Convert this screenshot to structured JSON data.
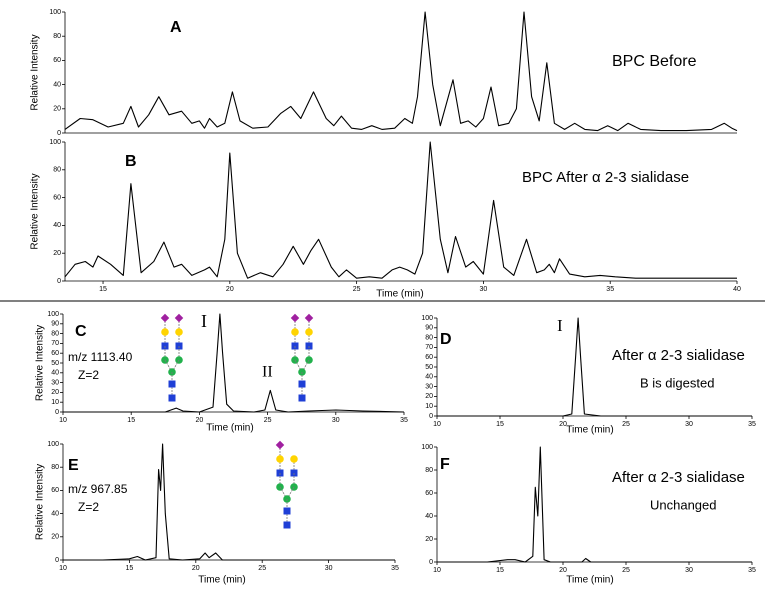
{
  "chart_data": [
    {
      "type": "line",
      "panel_label": "A",
      "ylabel": "Relative Intensity",
      "annotations": [
        "BPC Before"
      ],
      "xlim": [
        13.5,
        40
      ],
      "ylim": [
        0,
        100
      ],
      "yticks": [
        0,
        20,
        40,
        60,
        80,
        100
      ],
      "color": "#000000",
      "x": [
        13.5,
        14.1,
        14.6,
        15.2,
        15.8,
        16.1,
        16.4,
        16.8,
        17.2,
        17.6,
        18.1,
        18.5,
        18.8,
        19.0,
        19.2,
        19.5,
        19.8,
        20.1,
        20.4,
        20.9,
        21.5,
        22.0,
        22.4,
        22.8,
        23.3,
        23.8,
        24.1,
        24.4,
        24.8,
        25.2,
        25.6,
        26.0,
        26.5,
        26.9,
        27.2,
        27.4,
        27.7,
        28.0,
        28.3,
        28.8,
        29.1,
        29.4,
        29.7,
        30.0,
        30.3,
        30.6,
        31.0,
        31.3,
        31.6,
        31.9,
        32.2,
        32.5,
        32.8,
        33.2,
        33.6,
        34.0,
        34.5,
        34.9,
        35.3,
        35.7,
        36.2,
        37.0,
        38.0,
        39.0,
        39.5,
        39.8,
        40.0
      ],
      "values": [
        3,
        12,
        11,
        5,
        8,
        22,
        5,
        15,
        30,
        15,
        18,
        8,
        10,
        4,
        12,
        5,
        8,
        34,
        10,
        4,
        5,
        16,
        22,
        12,
        34,
        12,
        6,
        14,
        4,
        3,
        6,
        3,
        4,
        12,
        8,
        30,
        100,
        40,
        6,
        44,
        8,
        10,
        5,
        12,
        38,
        6,
        8,
        20,
        100,
        30,
        10,
        58,
        8,
        3,
        8,
        3,
        2,
        6,
        2,
        8,
        3,
        2,
        2,
        3,
        8,
        4,
        2
      ]
    },
    {
      "type": "line",
      "panel_label": "B",
      "ylabel": "Relative Intensity",
      "xlabel": "Time (min)",
      "annotations": [
        "BPC After α 2-3 sialidase"
      ],
      "xlim": [
        13.5,
        40
      ],
      "ylim": [
        0,
        100
      ],
      "xticks": [
        15,
        20,
        25,
        30,
        35,
        40
      ],
      "yticks": [
        0,
        20,
        40,
        60,
        80,
        100
      ],
      "color": "#000000",
      "x": [
        13.5,
        13.9,
        14.3,
        14.6,
        14.8,
        15.3,
        15.8,
        16.1,
        16.5,
        17.0,
        17.4,
        17.8,
        18.1,
        18.5,
        19.0,
        19.2,
        19.5,
        19.8,
        20.0,
        20.3,
        20.7,
        21.2,
        21.7,
        22.1,
        22.5,
        22.9,
        23.2,
        23.5,
        24.0,
        24.3,
        24.6,
        25.0,
        25.5,
        26.0,
        26.4,
        26.7,
        27.0,
        27.3,
        27.6,
        27.9,
        28.3,
        28.6,
        28.9,
        29.3,
        29.6,
        30.0,
        30.4,
        30.8,
        31.2,
        31.7,
        32.1,
        32.4,
        32.6,
        32.8,
        33.0,
        33.4,
        34.0,
        34.6,
        35.2,
        36.0,
        37.0,
        38.0,
        39.0,
        39.7,
        40.0
      ],
      "values": [
        3,
        12,
        14,
        10,
        18,
        12,
        4,
        70,
        6,
        14,
        28,
        10,
        12,
        4,
        8,
        10,
        3,
        30,
        92,
        20,
        2,
        6,
        3,
        12,
        25,
        12,
        22,
        30,
        10,
        3,
        8,
        2,
        3,
        2,
        8,
        10,
        8,
        5,
        20,
        100,
        30,
        6,
        32,
        10,
        14,
        5,
        58,
        10,
        4,
        30,
        6,
        8,
        12,
        6,
        16,
        5,
        3,
        4,
        3,
        2,
        2,
        2,
        2,
        2,
        2
      ]
    },
    {
      "type": "line",
      "panel_label": "C",
      "ylabel": "Relative Intensity",
      "xlabel": "Time (min)",
      "annotations": [
        "m/z 1113.40",
        "Z=2",
        "I",
        "II"
      ],
      "xlim": [
        10,
        35
      ],
      "ylim": [
        0,
        100
      ],
      "xticks": [
        10,
        15,
        20,
        25,
        30,
        35
      ],
      "yticks": [
        0,
        10,
        20,
        30,
        40,
        50,
        60,
        70,
        80,
        90,
        100
      ],
      "color": "#000000",
      "x": [
        10,
        12,
        14,
        16,
        17.5,
        18.3,
        18.8,
        20,
        21.0,
        21.3,
        21.5,
        21.7,
        22.0,
        22.5,
        24,
        24.8,
        25.2,
        25.6,
        26.5,
        28,
        30,
        32,
        35
      ],
      "values": [
        0,
        0,
        0,
        0,
        0,
        4,
        1,
        0,
        5,
        60,
        100,
        60,
        8,
        1,
        0,
        2,
        22,
        2,
        0,
        1,
        2,
        1,
        0
      ]
    },
    {
      "type": "line",
      "panel_label": "D",
      "xlabel": "Time (min)",
      "annotations": [
        "I",
        "After α 2-3 sialidase",
        "B is digested"
      ],
      "xlim": [
        10,
        35
      ],
      "ylim": [
        0,
        100
      ],
      "xticks": [
        10,
        15,
        20,
        25,
        30,
        35
      ],
      "yticks": [
        0,
        10,
        20,
        30,
        40,
        50,
        60,
        70,
        80,
        90,
        100
      ],
      "color": "#000000",
      "x": [
        10,
        15,
        20,
        20.7,
        21.0,
        21.2,
        21.4,
        21.7,
        23,
        30,
        35
      ],
      "values": [
        0,
        0,
        0,
        2,
        60,
        100,
        60,
        2,
        0,
        0,
        0
      ]
    },
    {
      "type": "line",
      "panel_label": "E",
      "ylabel": "Relative Intensity",
      "xlabel": "Time (min)",
      "annotations": [
        "m/z 967.85",
        "Z=2"
      ],
      "xlim": [
        10,
        35
      ],
      "ylim": [
        0,
        100
      ],
      "xticks": [
        10,
        15,
        20,
        25,
        30,
        35
      ],
      "yticks": [
        0,
        20,
        40,
        60,
        80,
        100
      ],
      "color": "#000000",
      "x": [
        10,
        13,
        15,
        15.6,
        16.2,
        17.0,
        17.2,
        17.35,
        17.5,
        17.7,
        18.0,
        19,
        20.3,
        20.7,
        21.0,
        21.5,
        22,
        25,
        30,
        35
      ],
      "values": [
        0,
        0,
        1,
        3,
        0,
        2,
        78,
        60,
        100,
        40,
        1,
        0,
        1,
        6,
        2,
        6,
        0,
        0,
        0,
        0
      ]
    },
    {
      "type": "line",
      "panel_label": "F",
      "xlabel": "Time (min)",
      "annotations": [
        "After α 2-3 sialidase",
        "Unchanged"
      ],
      "xlim": [
        10,
        35
      ],
      "ylim": [
        0,
        100
      ],
      "xticks": [
        10,
        15,
        20,
        25,
        30,
        35
      ],
      "yticks": [
        0,
        20,
        40,
        60,
        80,
        100
      ],
      "color": "#000000",
      "x": [
        10,
        14,
        15.6,
        16.2,
        17.0,
        17.6,
        17.8,
        18.0,
        18.2,
        18.5,
        19,
        21.5,
        21.8,
        22.2,
        25,
        30,
        35
      ],
      "values": [
        0,
        0,
        2,
        2,
        0,
        5,
        65,
        40,
        100,
        2,
        0,
        0,
        3,
        0,
        0,
        0,
        0
      ]
    }
  ]
}
